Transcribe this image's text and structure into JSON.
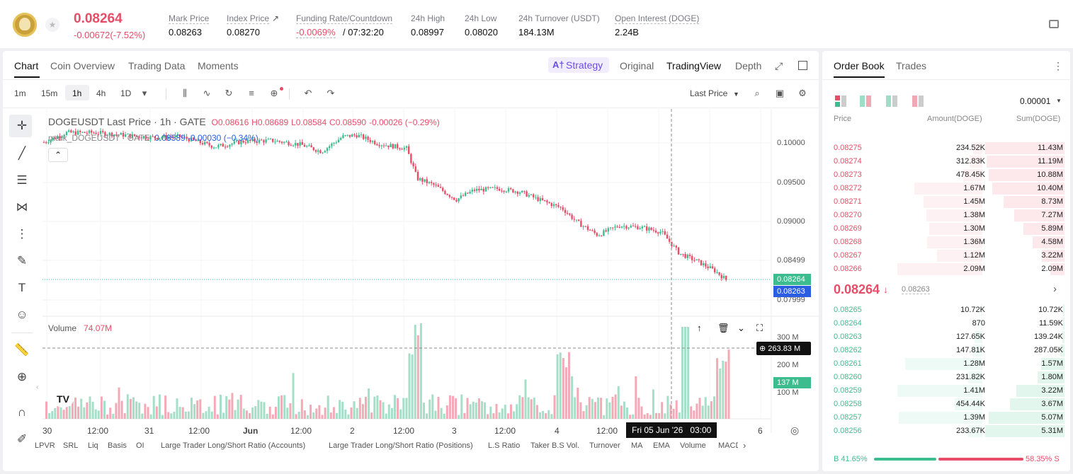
{
  "header": {
    "last_price": "0.08264",
    "change": "-0.00672(-7.52%)",
    "stats": [
      {
        "label": "Mark Price",
        "value": "0.08263"
      },
      {
        "label": "Index Price",
        "value": "0.08270"
      },
      {
        "label": "Funding Rate/Countdown",
        "value": "-0.0069%",
        "value2": "/ 07:32:20"
      },
      {
        "label": "24h High",
        "value": "0.08997"
      },
      {
        "label": "24h Low",
        "value": "0.08020"
      },
      {
        "label": "24h Turnover (USDT)",
        "value": "184.13M"
      },
      {
        "label": "Open Interest (DOGE)",
        "value": "2.24B"
      }
    ]
  },
  "chart_tabs": [
    "Chart",
    "Coin Overview",
    "Trading Data",
    "Moments"
  ],
  "view_tabs": {
    "strategy": "Strategy",
    "original": "Original",
    "tradingview": "TradingView",
    "depth": "Depth"
  },
  "intervals": [
    "1m",
    "15m",
    "1h",
    "4h",
    "1D"
  ],
  "toolbar": {
    "last_price": "Last Price"
  },
  "legend": {
    "symbol": "DOGEUSDT Last Price · 1h · GATE",
    "o": "O0.08616",
    "h": "H0.08689",
    "l": "L0.08584",
    "c": "C0.08590",
    "chg": "-0.00026 (−0.29%)",
    "mark": "mark_DOGEUSDT · GATE",
    "mark_v": "0.08589",
    "mark_c": "-0.00030 (−0.34%)"
  },
  "volume": {
    "label": "Volume",
    "value": "74.07M"
  },
  "y_axis": [
    "0.10000",
    "0.09500",
    "0.09000",
    "0.08499",
    "0.07999"
  ],
  "price_tags": {
    "last": "0.08264",
    "mark": "0.08263"
  },
  "vol_axis": [
    "300 M",
    "200 M",
    "100 M"
  ],
  "vol_tags": {
    "cross": "263.83 M",
    "cur": "137 M"
  },
  "x_axis": [
    "30",
    "12:00",
    "31",
    "12:00",
    "Jun",
    "12:00",
    "2",
    "12:00",
    "3",
    "12:00",
    "4",
    "12:00",
    "6"
  ],
  "crosshair_time": "Fri 05 Jun '26   03:00",
  "indicators": [
    "LPVR",
    "SRL",
    "Liq",
    "Basis",
    "OI",
    "Large Trader Long/Short Ratio (Accounts)",
    "Large Trader Long/Short Ratio (Positions)",
    "L.S Ratio",
    "Taker B.S Vol.",
    "Turnover",
    "MA",
    "EMA",
    "Volume",
    "MACD"
  ],
  "orderbook": {
    "tabs": [
      "Order Book",
      "Trades"
    ],
    "precision": "0.00001",
    "cols": [
      "Price",
      "Amount(DOGE)",
      "Sum(DOGE)"
    ],
    "asks": [
      [
        "0.08275",
        "234.52K",
        "11.43M"
      ],
      [
        "0.08274",
        "312.83K",
        "11.19M"
      ],
      [
        "0.08273",
        "478.45K",
        "10.88M"
      ],
      [
        "0.08272",
        "1.67M",
        "10.40M"
      ],
      [
        "0.08271",
        "1.45M",
        "8.73M"
      ],
      [
        "0.08270",
        "1.38M",
        "7.27M"
      ],
      [
        "0.08269",
        "1.30M",
        "5.89M"
      ],
      [
        "0.08268",
        "1.36M",
        "4.58M"
      ],
      [
        "0.08267",
        "1.12M",
        "3.22M"
      ],
      [
        "0.08266",
        "2.09M",
        "2.09M"
      ]
    ],
    "mid": "0.08264",
    "mid_mark": "0.08263",
    "bids": [
      [
        "0.08265",
        "10.72K",
        "10.72K"
      ],
      [
        "0.08264",
        "870",
        "11.59K"
      ],
      [
        "0.08263",
        "127.65K",
        "139.24K"
      ],
      [
        "0.08262",
        "147.81K",
        "287.05K"
      ],
      [
        "0.08261",
        "1.28M",
        "1.57M"
      ],
      [
        "0.08260",
        "231.82K",
        "1.80M"
      ],
      [
        "0.08259",
        "1.41M",
        "3.22M"
      ],
      [
        "0.08258",
        "454.44K",
        "3.67M"
      ],
      [
        "0.08257",
        "1.39M",
        "5.07M"
      ],
      [
        "0.08256",
        "233.67K",
        "5.31M"
      ]
    ],
    "buy": "B 41.65%",
    "sell": "58.35% S",
    "buy_pct": 41.65
  },
  "colors": {
    "up": "#3dbd8f",
    "down": "#e84d68",
    "accent": "#6b4ee6",
    "mark": "#2b5de0"
  }
}
